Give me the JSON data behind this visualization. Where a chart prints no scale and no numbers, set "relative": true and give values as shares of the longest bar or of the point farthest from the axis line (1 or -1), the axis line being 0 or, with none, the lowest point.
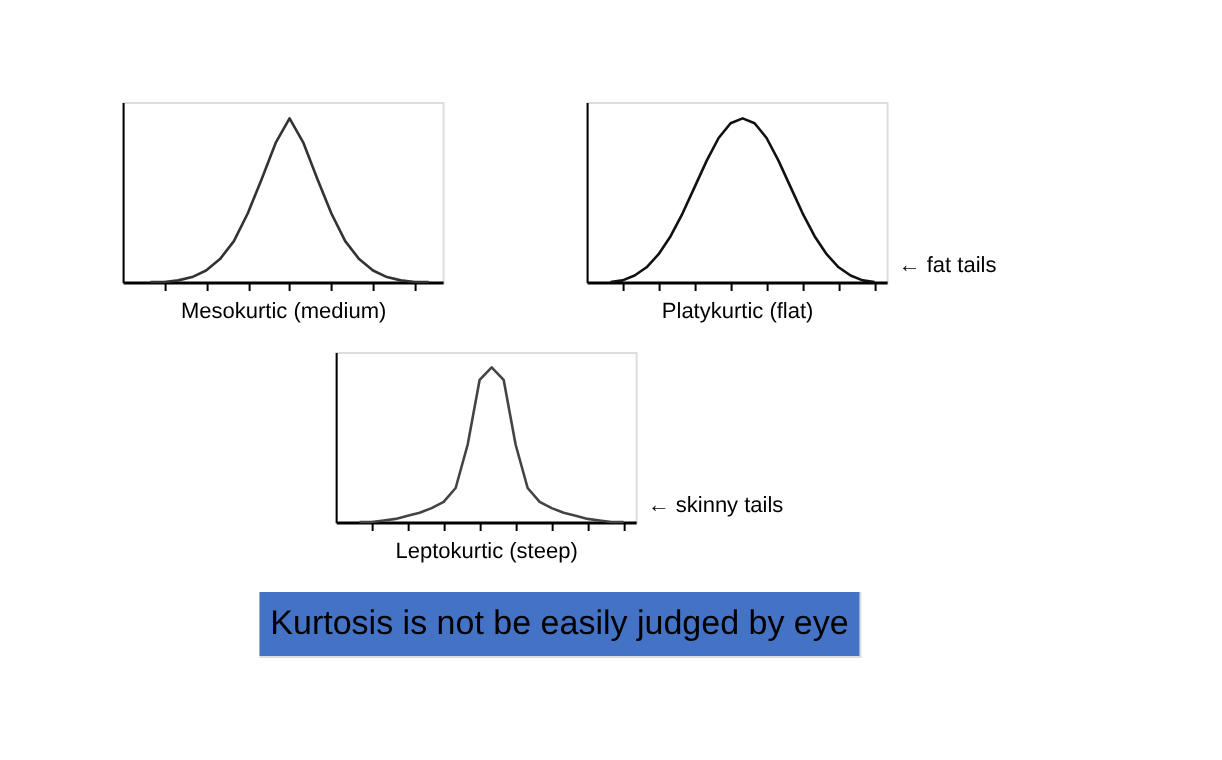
{
  "chart_data": [
    {
      "type": "line",
      "relative": true,
      "xlabel": "Mesokurtic (medium)",
      "color": "#333333",
      "categories": [
        null,
        null,
        null,
        null,
        null,
        null,
        null,
        null,
        null,
        null,
        null,
        null,
        null,
        null,
        null,
        null,
        null,
        null,
        null,
        null,
        null
      ],
      "values": [
        0,
        0,
        0.01,
        0.03,
        0.07,
        0.14,
        0.25,
        0.42,
        0.63,
        0.85,
        1,
        0.85,
        0.63,
        0.42,
        0.25,
        0.14,
        0.07,
        0.03,
        0.01,
        0,
        0
      ]
    },
    {
      "type": "line",
      "relative": true,
      "xlabel": "Platykurtic (flat)",
      "color": "#111111",
      "annotations": [
        "← fat tails"
      ],
      "categories": [
        null,
        null,
        null,
        null,
        null,
        null,
        null,
        null,
        null,
        null,
        null,
        null,
        null,
        null,
        null,
        null,
        null,
        null,
        null,
        null,
        null,
        null,
        null
      ],
      "values": [
        0,
        0.01,
        0.04,
        0.09,
        0.17,
        0.28,
        0.42,
        0.58,
        0.74,
        0.88,
        0.97,
        1,
        0.97,
        0.88,
        0.74,
        0.58,
        0.42,
        0.28,
        0.17,
        0.09,
        0.04,
        0.01,
        0
      ]
    },
    {
      "type": "line",
      "relative": true,
      "xlabel": "Leptokurtic (steep)",
      "color": "#444444",
      "annotations": [
        "← skinny tails"
      ],
      "categories": [
        null,
        null,
        null,
        null,
        null,
        null,
        null,
        null,
        null,
        null,
        null,
        null,
        null,
        null,
        null,
        null,
        null,
        null,
        null,
        null,
        null,
        null,
        null
      ],
      "values": [
        0,
        0,
        0.01,
        0.02,
        0.04,
        0.06,
        0.09,
        0.13,
        0.22,
        0.5,
        0.92,
        1,
        0.92,
        0.5,
        0.22,
        0.13,
        0.09,
        0.06,
        0.04,
        0.02,
        0.01,
        0,
        0
      ]
    },
    {
      "type": "other",
      "title": "Kurtosis is not be easily judged by eye",
      "color": "#4472c4"
    }
  ]
}
